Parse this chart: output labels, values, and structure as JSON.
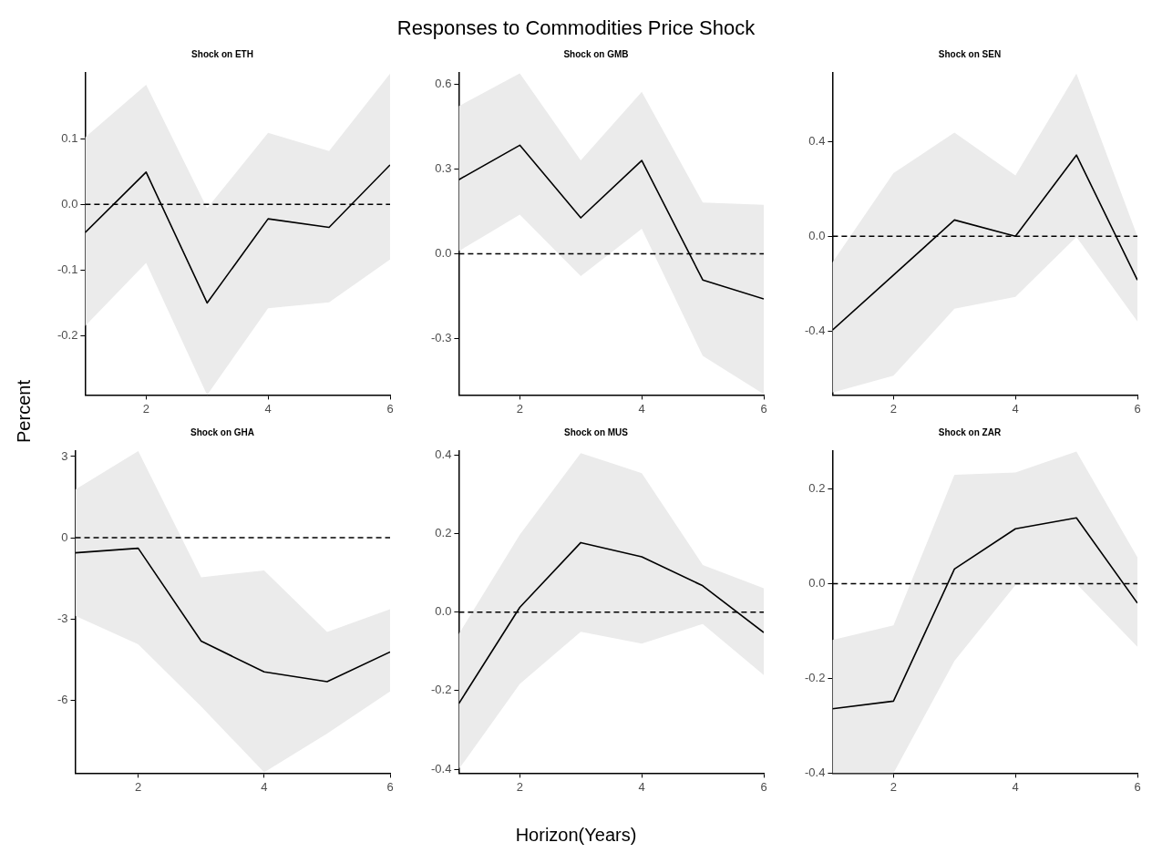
{
  "chart_data": [
    {
      "type": "line",
      "title": "Shock on ETH",
      "annotations": [
        "Responses to Commodities Price Shock",
        "Percent",
        "Horizon(Years)"
      ],
      "x": [
        1,
        2,
        3,
        4,
        5,
        6
      ],
      "xlim": [
        1,
        6
      ],
      "xticks": [
        2,
        4,
        6
      ],
      "ylim": [
        -0.29,
        0.2
      ],
      "yticks": [
        {
          "value": -0.2,
          "label": "-0.2"
        },
        {
          "value": -0.1,
          "label": "-0.1"
        },
        {
          "value": 0,
          "label": "0.0"
        },
        {
          "value": 0.1,
          "label": "0.1"
        }
      ],
      "grid": false,
      "legend": false,
      "marker": "none",
      "line_style": "solid",
      "series": [
        {
          "color": "#000000",
          "values": [
            -0.043,
            0.049,
            -0.15,
            -0.022,
            -0.035,
            0.06
          ],
          "lower": [
            -0.185,
            -0.089,
            -0.29,
            -0.158,
            -0.149,
            -0.084
          ],
          "upper": [
            0.102,
            0.182,
            -0.006,
            0.109,
            0.081,
            0.199
          ]
        }
      ],
      "ref_lines": [
        {
          "axis": "y",
          "value": 0,
          "color": "#000000",
          "line_style": "dashed"
        }
      ]
    },
    {
      "type": "line",
      "title": "Shock on GMB",
      "x": [
        1,
        2,
        3,
        4,
        5,
        6
      ],
      "xlim": [
        1,
        6
      ],
      "xticks": [
        2,
        4,
        6
      ],
      "ylim": [
        -0.5,
        0.64
      ],
      "yticks": [
        {
          "value": -0.3,
          "label": "-0.3"
        },
        {
          "value": 0,
          "label": "0.0"
        },
        {
          "value": 0.3,
          "label": "0.3"
        },
        {
          "value": 0.6,
          "label": "0.6"
        }
      ],
      "grid": false,
      "legend": false,
      "marker": "none",
      "line_style": "solid",
      "series": [
        {
          "color": "#000000",
          "values": [
            0.262,
            0.384,
            0.127,
            0.33,
            -0.093,
            -0.16
          ],
          "lower": [
            0.009,
            0.138,
            -0.079,
            0.088,
            -0.362,
            -0.497
          ],
          "upper": [
            0.522,
            0.638,
            0.33,
            0.573,
            0.181,
            0.173
          ]
        }
      ],
      "ref_lines": [
        {
          "axis": "y",
          "value": 0,
          "color": "#000000",
          "line_style": "dashed"
        }
      ]
    },
    {
      "type": "line",
      "title": "Shock on SEN",
      "x": [
        1,
        2,
        3,
        4,
        5,
        6
      ],
      "xlim": [
        1,
        6
      ],
      "xticks": [
        2,
        4,
        6
      ],
      "ylim": [
        -0.67,
        0.69
      ],
      "yticks": [
        {
          "value": -0.4,
          "label": "-0.4"
        },
        {
          "value": 0,
          "label": "0.0"
        },
        {
          "value": 0.4,
          "label": "0.4"
        }
      ],
      "grid": false,
      "legend": false,
      "marker": "none",
      "line_style": "solid",
      "series": [
        {
          "color": "#000000",
          "values": [
            -0.396,
            -0.164,
            0.069,
            0,
            0.343,
            -0.185
          ],
          "lower": [
            -0.66,
            -0.589,
            -0.306,
            -0.256,
            -0.003,
            -0.36
          ],
          "upper": [
            -0.11,
            0.267,
            0.438,
            0.257,
            0.687,
            0.0
          ]
        }
      ],
      "ref_lines": [
        {
          "axis": "y",
          "value": 0,
          "color": "#000000",
          "line_style": "dashed"
        }
      ]
    },
    {
      "type": "line",
      "title": "Shock on GHA",
      "x": [
        1,
        2,
        3,
        4,
        5,
        6
      ],
      "xlim": [
        1,
        6
      ],
      "xticks": [
        2,
        4,
        6
      ],
      "ylim": [
        -8.7,
        3.2
      ],
      "yticks": [
        -6,
        -3,
        0,
        3
      ],
      "grid": false,
      "legend": false,
      "marker": "none",
      "line_style": "solid",
      "series": [
        {
          "color": "#000000",
          "values": [
            -0.56,
            -0.39,
            -3.82,
            -4.96,
            -5.32,
            -4.22
          ],
          "lower": [
            -2.89,
            -3.94,
            -6.24,
            -8.67,
            -7.24,
            -5.68
          ],
          "upper": [
            1.78,
            3.2,
            -1.46,
            -1.21,
            -3.48,
            -2.64
          ]
        }
      ],
      "ref_lines": [
        {
          "axis": "y",
          "value": 0,
          "color": "#000000",
          "line_style": "dashed"
        }
      ]
    },
    {
      "type": "line",
      "title": "Shock on MUS",
      "x": [
        1,
        2,
        3,
        4,
        5,
        6
      ],
      "xlim": [
        1,
        6
      ],
      "xticks": [
        2,
        4,
        6
      ],
      "ylim": [
        -0.41,
        0.41
      ],
      "yticks": [
        {
          "value": -0.4,
          "label": "-0.4"
        },
        {
          "value": -0.2,
          "label": "-0.2"
        },
        {
          "value": 0,
          "label": "0.0"
        },
        {
          "value": 0.2,
          "label": "0.2"
        },
        {
          "value": 0.4,
          "label": "0.4"
        }
      ],
      "grid": false,
      "legend": false,
      "marker": "none",
      "line_style": "solid",
      "series": [
        {
          "color": "#000000",
          "values": [
            -0.233,
            0.012,
            0.177,
            0.141,
            0.067,
            -0.052
          ],
          "lower": [
            -0.4,
            -0.183,
            -0.05,
            -0.08,
            -0.03,
            -0.16
          ],
          "upper": [
            -0.056,
            0.197,
            0.405,
            0.354,
            0.12,
            0.061
          ]
        }
      ],
      "ref_lines": [
        {
          "axis": "y",
          "value": 0,
          "color": "#000000",
          "line_style": "dashed"
        }
      ]
    },
    {
      "type": "line",
      "title": "Shock on ZAR",
      "x": [
        1,
        2,
        3,
        4,
        5,
        6
      ],
      "xlim": [
        1,
        6
      ],
      "xticks": [
        2,
        4,
        6
      ],
      "ylim": [
        -0.4,
        0.28
      ],
      "yticks": [
        {
          "value": -0.4,
          "label": "-0.4"
        },
        {
          "value": -0.2,
          "label": "-0.2"
        },
        {
          "value": 0,
          "label": "0.0"
        },
        {
          "value": 0.2,
          "label": "0.2"
        }
      ],
      "grid": false,
      "legend": false,
      "marker": "none",
      "line_style": "solid",
      "series": [
        {
          "color": "#000000",
          "values": [
            -0.264,
            -0.248,
            0.031,
            0.116,
            0.139,
            -0.041
          ],
          "lower": [
            -0.4,
            -0.4,
            -0.163,
            -0.003,
            0,
            -0.133
          ],
          "upper": [
            -0.119,
            -0.088,
            0.23,
            0.235,
            0.279,
            0.056
          ]
        }
      ],
      "ref_lines": [
        {
          "axis": "y",
          "value": 0,
          "color": "#000000",
          "line_style": "dashed"
        }
      ]
    }
  ]
}
